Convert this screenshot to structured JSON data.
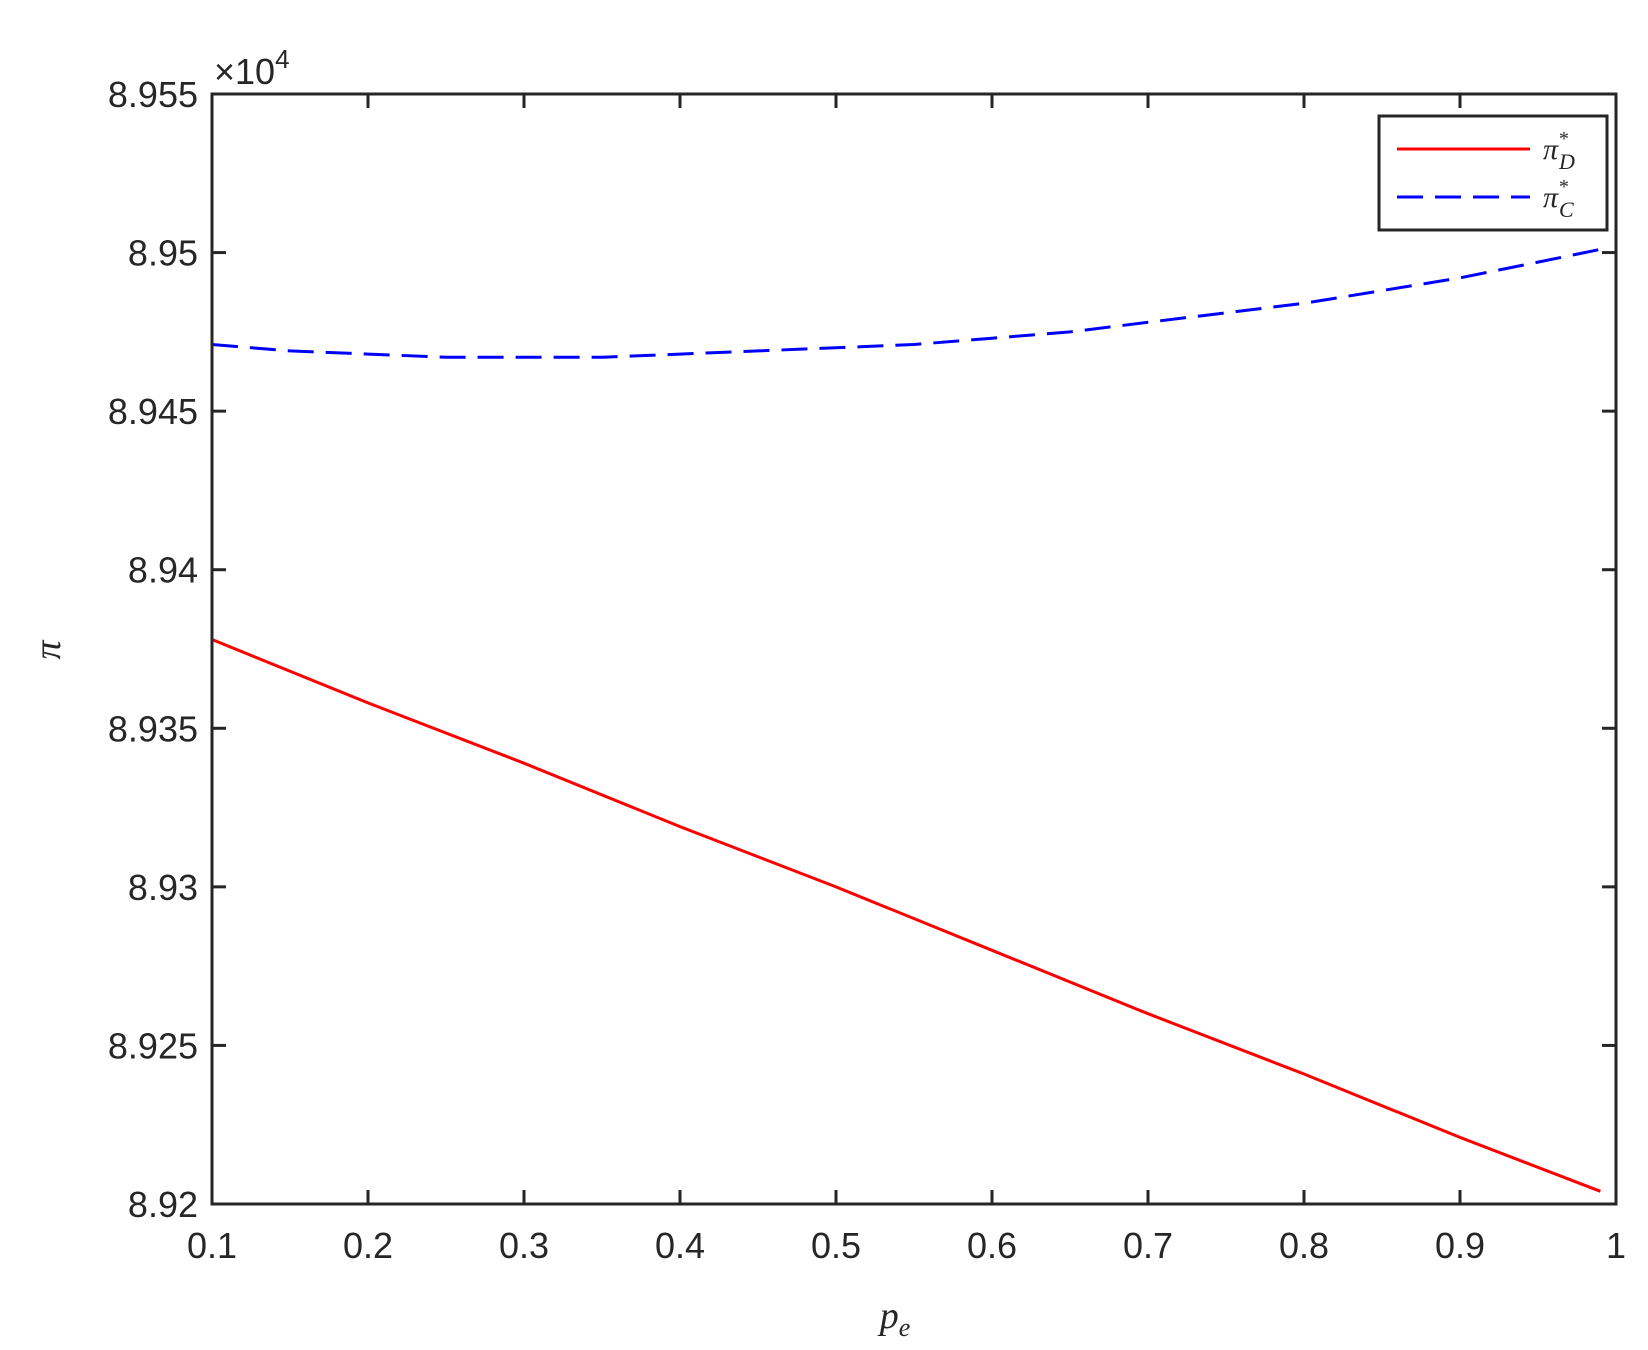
{
  "chart_data": {
    "type": "line",
    "title": "",
    "xlabel": "p",
    "xlabel_sub": "e",
    "ylabel": "π",
    "y_exponent_label": "×10",
    "y_exponent_power": "4",
    "xlim": [
      0.1,
      1.0
    ],
    "ylim": [
      8.92,
      8.955
    ],
    "x_ticks": [
      0.1,
      0.2,
      0.3,
      0.4,
      0.5,
      0.6,
      0.7,
      0.8,
      0.9,
      1.0
    ],
    "x_tick_labels": [
      "0.1",
      "0.2",
      "0.3",
      "0.4",
      "0.5",
      "0.6",
      "0.7",
      "0.8",
      "0.9",
      "1"
    ],
    "y_ticks": [
      8.92,
      8.925,
      8.93,
      8.935,
      8.94,
      8.945,
      8.95,
      8.955
    ],
    "y_tick_labels": [
      "8.92",
      "8.925",
      "8.93",
      "8.935",
      "8.94",
      "8.945",
      "8.95",
      "8.955"
    ],
    "grid": false,
    "legend_position": "top-right",
    "series": [
      {
        "name": "π*D",
        "name_base": "π",
        "name_sup": "*",
        "name_sub": "D",
        "color": "#ff0000",
        "dash": "solid",
        "x": [
          0.1,
          0.2,
          0.3,
          0.4,
          0.5,
          0.6,
          0.7,
          0.8,
          0.9,
          0.99
        ],
        "y": [
          8.9378,
          8.9358,
          8.9339,
          8.9319,
          8.93,
          8.928,
          8.926,
          8.9241,
          8.9221,
          8.9204
        ]
      },
      {
        "name": "π*C",
        "name_base": "π",
        "name_sup": "*",
        "name_sub": "C",
        "color": "#0000ff",
        "dash": "dashed",
        "x": [
          0.1,
          0.15,
          0.2,
          0.25,
          0.3,
          0.35,
          0.4,
          0.45,
          0.5,
          0.55,
          0.6,
          0.65,
          0.7,
          0.75,
          0.8,
          0.85,
          0.9,
          0.95,
          0.99
        ],
        "y": [
          8.9471,
          8.9469,
          8.9468,
          8.9467,
          8.9467,
          8.9467,
          8.9468,
          8.9469,
          8.947,
          8.9471,
          8.9473,
          8.9475,
          8.9478,
          8.9481,
          8.9484,
          8.9488,
          8.9492,
          8.9497,
          8.9501
        ]
      }
    ]
  }
}
